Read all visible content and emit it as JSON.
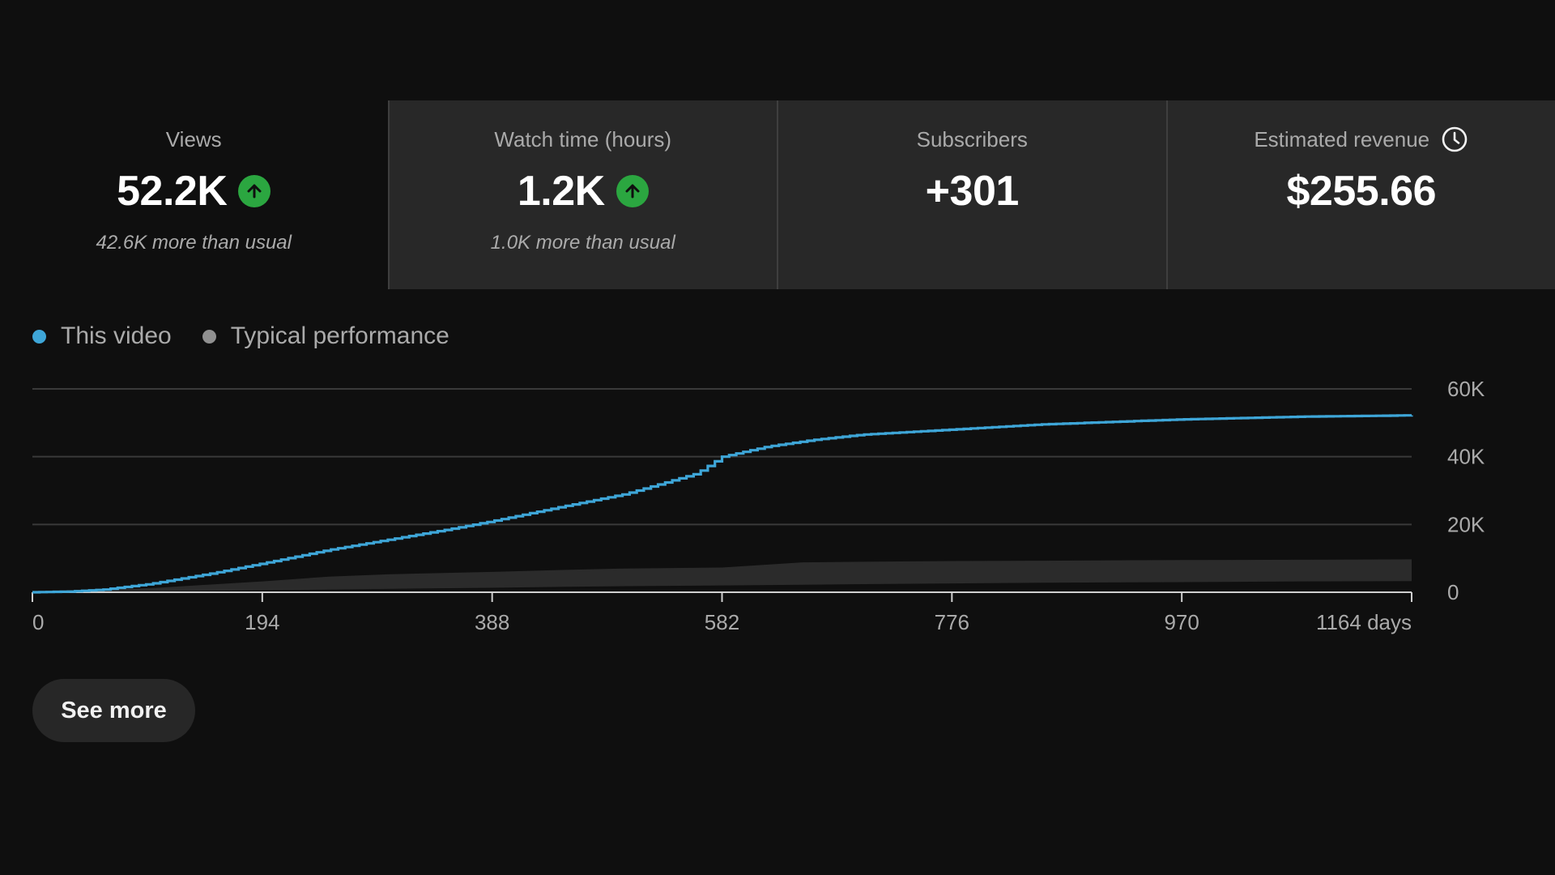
{
  "metrics": [
    {
      "label": "Views",
      "value": "52.2K",
      "trend": "up",
      "note": "42.6K more than usual",
      "active": true
    },
    {
      "label": "Watch time (hours)",
      "value": "1.2K",
      "trend": "up",
      "note": "1.0K more than usual",
      "active": false
    },
    {
      "label": "Subscribers",
      "value": "+301",
      "trend": "",
      "note": "",
      "active": false
    },
    {
      "label": "Estimated revenue",
      "value": "$255.66",
      "trend": "",
      "note": "",
      "active": false,
      "icon": "clock-icon"
    }
  ],
  "colors": {
    "this_video": "#3ea6d8",
    "typical": "#909090",
    "typical_band": "#2b2b2b",
    "trend_up": "#2ba640"
  },
  "chart_data": {
    "type": "line",
    "x_unit": "days",
    "xlim": [
      0,
      1164
    ],
    "ylim": [
      0,
      60000
    ],
    "x_ticks": [
      {
        "value": 0,
        "label": "0"
      },
      {
        "value": 194,
        "label": "194"
      },
      {
        "value": 388,
        "label": "388"
      },
      {
        "value": 582,
        "label": "582"
      },
      {
        "value": 776,
        "label": "776"
      },
      {
        "value": 970,
        "label": "970"
      },
      {
        "value": 1164,
        "label": "1164 days"
      }
    ],
    "y_ticks": [
      {
        "value": 0,
        "label": "0"
      },
      {
        "value": 20000,
        "label": "20K"
      },
      {
        "value": 40000,
        "label": "40K"
      },
      {
        "value": 60000,
        "label": "60K"
      }
    ],
    "grid": true,
    "legend_placement": "top-left",
    "series": [
      {
        "name": "This video",
        "x": [
          0,
          30,
          60,
          100,
          150,
          194,
          250,
          300,
          350,
          388,
          450,
          500,
          530,
          560,
          582,
          620,
          660,
          700,
          776,
          850,
          970,
          1070,
          1164
        ],
        "y": [
          0,
          200,
          800,
          2500,
          5500,
          8500,
          12500,
          15500,
          18500,
          21000,
          25500,
          29000,
          32000,
          35000,
          40000,
          43000,
          45000,
          46500,
          48000,
          49500,
          51000,
          51800,
          52200
        ]
      }
    ],
    "typical_band": {
      "name": "Typical performance",
      "x": [
        0,
        100,
        194,
        250,
        300,
        388,
        450,
        500,
        582,
        650,
        700,
        776,
        850,
        970,
        1070,
        1164
      ],
      "lower": [
        0,
        200,
        600,
        800,
        1000,
        1300,
        1600,
        1800,
        2000,
        2200,
        2400,
        2600,
        2800,
        3000,
        3200,
        3300
      ],
      "upper": [
        0,
        1200,
        3200,
        4600,
        5300,
        6000,
        6600,
        7000,
        7300,
        8800,
        9000,
        9200,
        9300,
        9500,
        9600,
        9700
      ]
    }
  },
  "legend": {
    "this_video": "This video",
    "typical": "Typical performance"
  },
  "buttons": {
    "see_more": "See more"
  }
}
